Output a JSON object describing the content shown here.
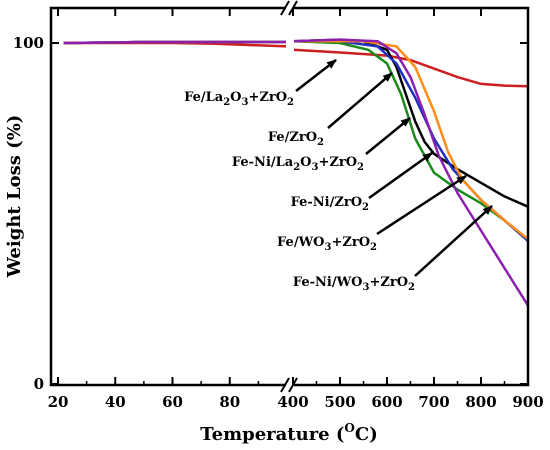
{
  "chart_data": {
    "type": "line",
    "title": "",
    "xlabel": "Temperature (°C)",
    "xlabel_main": "Temperature (",
    "xlabel_sup": "O",
    "xlabel_tail": "C)",
    "ylabel": "Weight Loss (%)",
    "axis_break": "//",
    "left_segment": {
      "xlim": [
        20,
        100
      ],
      "ticks": [
        20,
        40,
        60,
        80
      ]
    },
    "right_segment": {
      "xlim": [
        400,
        900
      ],
      "ticks": [
        400,
        500,
        600,
        700,
        800,
        900
      ]
    },
    "ylim": [
      0,
      102
    ],
    "yticks": [
      0,
      100
    ],
    "grid": false,
    "series": [
      {
        "name": "Fe/La2O3+ZrO2",
        "name_parts": [
          "Fe/La",
          "2",
          "O",
          "3",
          "+ZrO",
          "2"
        ],
        "color": "#cc1f1f",
        "left": [
          [
            22,
            100
          ],
          [
            40,
            100
          ],
          [
            60,
            100
          ],
          [
            75,
            99.8
          ],
          [
            100,
            99
          ]
        ],
        "right": [
          [
            400,
            98
          ],
          [
            500,
            97.2
          ],
          [
            600,
            96.3
          ],
          [
            650,
            95
          ],
          [
            700,
            92.5
          ],
          [
            750,
            90
          ],
          [
            800,
            88
          ],
          [
            850,
            87.5
          ],
          [
            900,
            87.3
          ]
        ]
      },
      {
        "name": "Fe/ZrO2",
        "name_parts": [
          "Fe/ZrO",
          "2"
        ],
        "color": "#000000",
        "left": [
          [
            22,
            100
          ],
          [
            50,
            100.3
          ],
          [
            100,
            100.3
          ]
        ],
        "right": [
          [
            400,
            100.5
          ],
          [
            500,
            101
          ],
          [
            550,
            100.5
          ],
          [
            600,
            98
          ],
          [
            620,
            93
          ],
          [
            640,
            85
          ],
          [
            660,
            77
          ],
          [
            680,
            71
          ],
          [
            700,
            67.5
          ],
          [
            750,
            63
          ],
          [
            800,
            59
          ],
          [
            850,
            55
          ],
          [
            900,
            52
          ]
        ]
      },
      {
        "name": "Fe-Ni/La2O3+ZrO2",
        "name_parts": [
          "Fe-Ni/La",
          "2",
          "O",
          "3",
          "+ZrO",
          "2"
        ],
        "color": "#1a8a1a",
        "left": [
          [
            22,
            100
          ],
          [
            50,
            100.3
          ],
          [
            100,
            100.3
          ]
        ],
        "right": [
          [
            400,
            100.5
          ],
          [
            500,
            100
          ],
          [
            560,
            98
          ],
          [
            600,
            94
          ],
          [
            630,
            85
          ],
          [
            660,
            72
          ],
          [
            700,
            62
          ],
          [
            750,
            57
          ],
          [
            800,
            53
          ],
          [
            850,
            48
          ],
          [
            900,
            42
          ]
        ]
      },
      {
        "name": "Fe-Ni/ZrO2",
        "name_parts": [
          "Fe-Ni/ZrO",
          "2"
        ],
        "color": "#1f2fbf",
        "left": [
          [
            22,
            100
          ],
          [
            50,
            100.3
          ],
          [
            100,
            100.3
          ]
        ],
        "right": [
          [
            400,
            100.5
          ],
          [
            500,
            100.5
          ],
          [
            580,
            99
          ],
          [
            620,
            94
          ],
          [
            660,
            84
          ],
          [
            700,
            72
          ],
          [
            740,
            63
          ],
          [
            800,
            54
          ],
          [
            850,
            48
          ],
          [
            900,
            42
          ]
        ]
      },
      {
        "name": "Fe/WO3+ZrO2",
        "name_parts": [
          "Fe/WO",
          "3",
          "+ZrO",
          "2"
        ],
        "color": "#ff8c1a",
        "left": [
          [
            22,
            100
          ],
          [
            50,
            100.3
          ],
          [
            100,
            100.3
          ]
        ],
        "right": [
          [
            400,
            100.5
          ],
          [
            550,
            100.5
          ],
          [
            620,
            99
          ],
          [
            660,
            93
          ],
          [
            700,
            80
          ],
          [
            730,
            68
          ],
          [
            760,
            60
          ],
          [
            800,
            54
          ],
          [
            850,
            48
          ],
          [
            900,
            42.5
          ]
        ]
      },
      {
        "name": "Fe-Ni/WO3+ZrO2",
        "name_parts": [
          "Fe-Ni/WO",
          "3",
          "+ZrO",
          "2"
        ],
        "color": "#8a1fb0",
        "left": [
          [
            22,
            100
          ],
          [
            50,
            100.3
          ],
          [
            100,
            100.3
          ]
        ],
        "right": [
          [
            400,
            100.5
          ],
          [
            500,
            101
          ],
          [
            580,
            100.5
          ],
          [
            620,
            97
          ],
          [
            650,
            90
          ],
          [
            680,
            79
          ],
          [
            710,
            67
          ],
          [
            750,
            56
          ],
          [
            800,
            45
          ],
          [
            850,
            34
          ],
          [
            900,
            23
          ]
        ]
      }
    ]
  }
}
